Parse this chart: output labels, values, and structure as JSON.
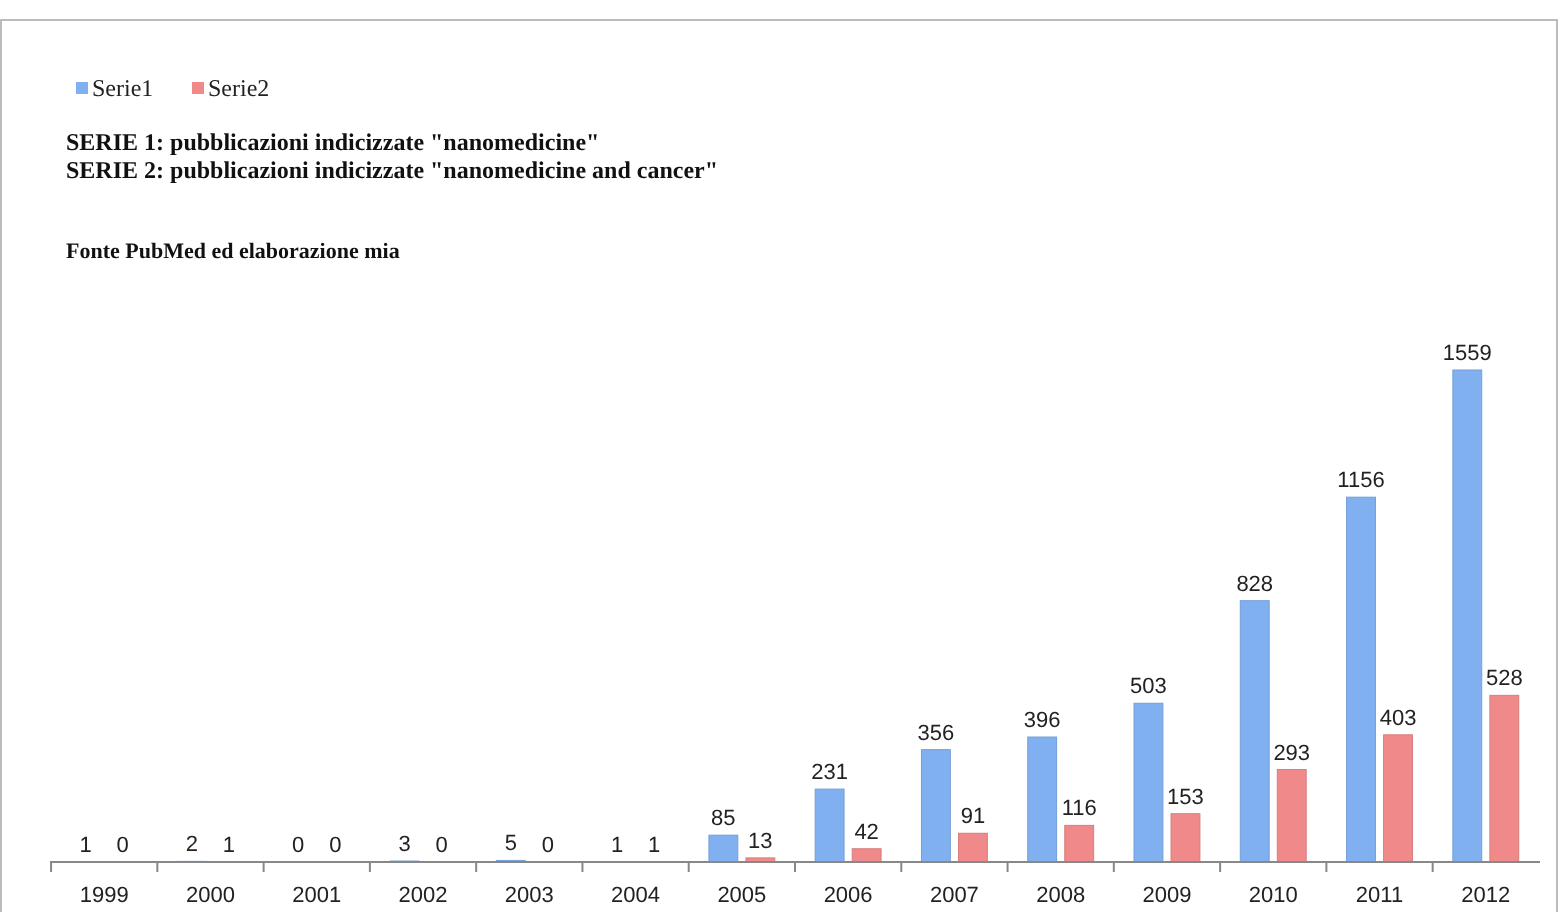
{
  "chart_data": {
    "type": "bar",
    "categories": [
      "1999",
      "2000",
      "2001",
      "2002",
      "2003",
      "2004",
      "2005",
      "2006",
      "2007",
      "2008",
      "2009",
      "2010",
      "2011",
      "2012"
    ],
    "series": [
      {
        "name": "Serie1",
        "color": "#80b0f0",
        "values": [
          1,
          2,
          0,
          3,
          5,
          1,
          85,
          231,
          356,
          396,
          503,
          828,
          1156,
          1559
        ]
      },
      {
        "name": "Serie2",
        "color": "#f08a8a",
        "values": [
          0,
          1,
          0,
          0,
          0,
          1,
          13,
          42,
          91,
          116,
          153,
          293,
          403,
          528
        ]
      }
    ],
    "data_labels": true,
    "legend": "top left",
    "annotations": [
      "SERIE 1: pubblicazioni indicizzate \"nanomedicine\"",
      "SERIE 2: pubblicazioni indicizzate \"nanomedicine and cancer\"",
      "Fonte PubMed ed elaborazione mia"
    ]
  }
}
